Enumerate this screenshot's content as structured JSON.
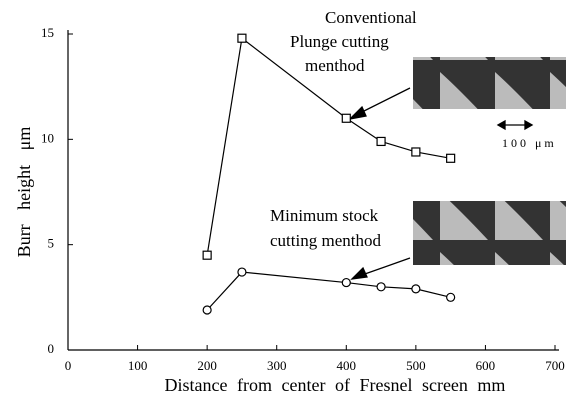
{
  "chart_data": {
    "type": "line",
    "x_label": "Distance from center of Fresnel screen mm",
    "y_label": "Burr height μm",
    "xlim": [
      0,
      700
    ],
    "xticks": [
      0,
      100,
      200,
      300,
      400,
      500,
      600,
      700
    ],
    "ylim": [
      0,
      15
    ],
    "yticks": [
      0,
      5,
      10,
      15
    ],
    "series": [
      {
        "marker": "square",
        "color": "#000000",
        "x": [
          200,
          250,
          400,
          450,
          500,
          550
        ],
        "values": [
          4.5,
          14.8,
          11.0,
          9.9,
          9.4,
          9.1
        ]
      },
      {
        "marker": "circle",
        "color": "#000000",
        "x": [
          200,
          250,
          400,
          450,
          500,
          550
        ],
        "values": [
          1.9,
          3.7,
          3.2,
          3.0,
          2.9,
          2.5
        ]
      }
    ],
    "annotations": [
      "Conventional",
      "Plunge cutting",
      "menthod",
      "Minimum stock",
      "cutting menthod",
      "100 μm"
    ]
  }
}
